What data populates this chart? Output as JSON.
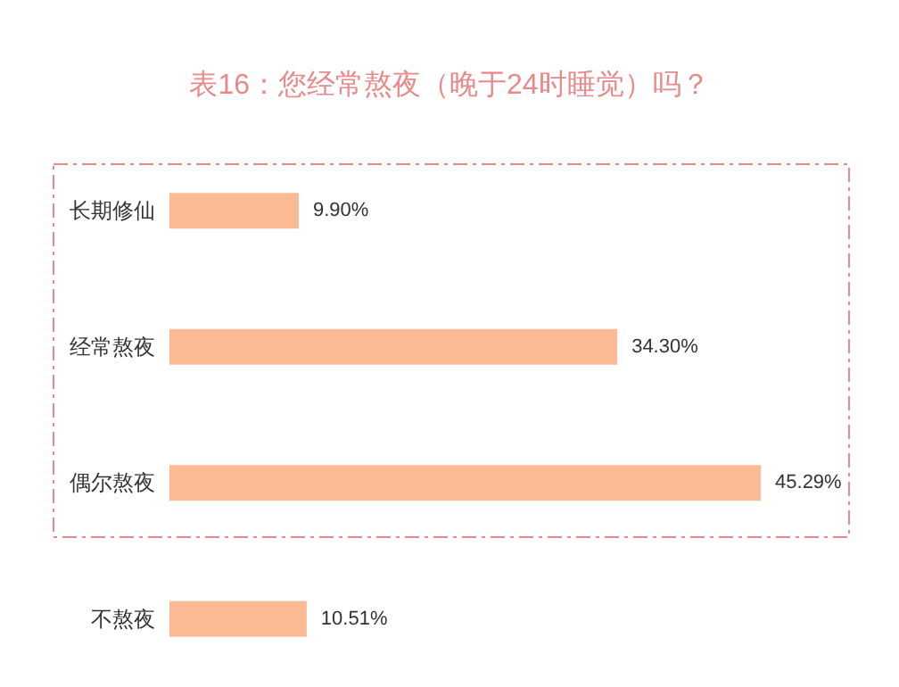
{
  "chart_data": {
    "type": "bar",
    "orientation": "horizontal",
    "title": "表16：您经常熬夜（晚于24时睡觉）吗？",
    "categories": [
      "长期修仙",
      "经常熬夜",
      "偶尔熬夜",
      "不熬夜"
    ],
    "values": [
      9.9,
      34.3,
      45.29,
      10.51
    ],
    "value_labels": [
      "9.90%",
      "34.30%",
      "45.29%",
      "10.51%"
    ],
    "color": "#fbb994"
  }
}
